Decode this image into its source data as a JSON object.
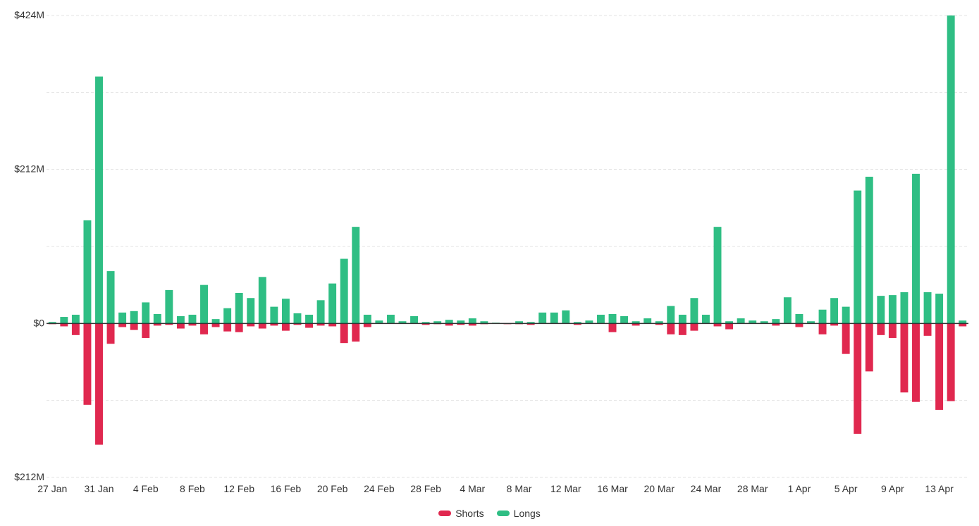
{
  "chart_data": {
    "type": "bar",
    "stacked_diverging": true,
    "y_tick_labels": [
      "$424M",
      "$212M",
      "$0",
      "$212M"
    ],
    "y_ticks": [
      424,
      212,
      0,
      -212
    ],
    "ylim": [
      -212,
      424
    ],
    "x_tick_labels": [
      "27 Jan",
      "31 Jan",
      "4 Feb",
      "8 Feb",
      "12 Feb",
      "16 Feb",
      "20 Feb",
      "24 Feb",
      "28 Feb",
      "4 Mar",
      "8 Mar",
      "12 Mar",
      "16 Mar",
      "20 Mar",
      "24 Mar",
      "28 Mar",
      "1 Apr",
      "5 Apr",
      "9 Apr",
      "13 Apr"
    ],
    "x_tick_every": 4,
    "grid": true,
    "legend_position": "bottom-center",
    "colors": {
      "Shorts": "#e0284f",
      "Longs": "#2fbe84"
    },
    "series": [
      {
        "name": "Longs",
        "values": [
          2,
          9,
          12,
          142,
          340,
          72,
          15,
          17,
          29,
          13,
          46,
          10,
          12,
          53,
          6,
          21,
          42,
          35,
          64,
          23,
          34,
          14,
          12,
          32,
          55,
          89,
          133,
          12,
          4,
          12,
          3,
          10,
          2,
          3,
          5,
          4,
          7,
          3,
          1,
          0,
          3,
          2,
          15,
          15,
          18,
          2,
          4,
          12,
          13,
          10,
          3,
          7,
          3,
          24,
          12,
          35,
          12,
          133,
          3,
          7,
          4,
          3,
          6,
          36,
          13,
          3,
          19,
          35,
          23,
          183,
          202,
          38,
          39,
          43,
          206,
          43,
          41,
          424,
          4
        ]
      },
      {
        "name": "Shorts",
        "values": [
          -1,
          -4,
          -16,
          -112,
          -167,
          -28,
          -5,
          -9,
          -20,
          -3,
          -2,
          -7,
          -3,
          -15,
          -5,
          -11,
          -12,
          -4,
          -7,
          -3,
          -10,
          -2,
          -6,
          -3,
          -4,
          -27,
          -25,
          -5,
          0,
          0,
          0,
          0,
          -2,
          -1,
          -3,
          -2,
          -3,
          -1,
          0,
          -1,
          -1,
          -2,
          0,
          0,
          0,
          -2,
          0,
          0,
          -12,
          0,
          -3,
          0,
          -2,
          -15,
          -16,
          -10,
          0,
          -4,
          -8,
          0,
          0,
          0,
          -3,
          0,
          -5,
          0,
          -15,
          -3,
          -42,
          -152,
          -66,
          -16,
          -20,
          -95,
          -108,
          -17,
          -119,
          -107,
          -4
        ]
      }
    ]
  },
  "legend": {
    "shorts_label": "Shorts",
    "longs_label": "Longs"
  }
}
